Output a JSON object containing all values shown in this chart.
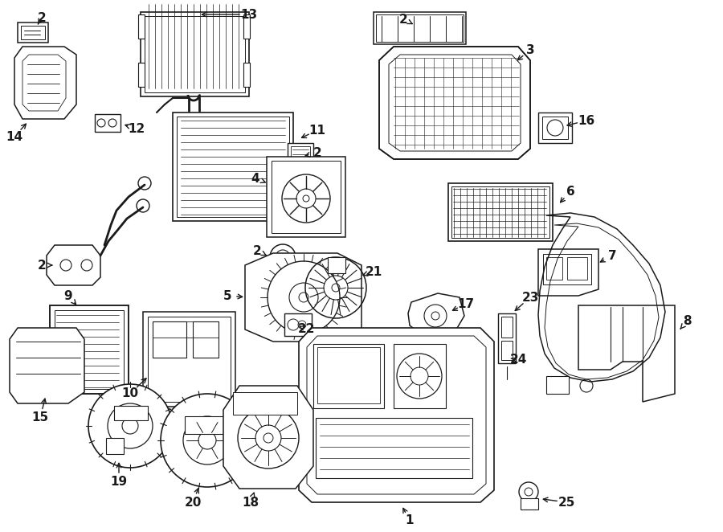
{
  "bg_color": "#ffffff",
  "line_color": "#1a1a1a",
  "fig_w": 9.0,
  "fig_h": 6.62,
  "dpi": 100
}
